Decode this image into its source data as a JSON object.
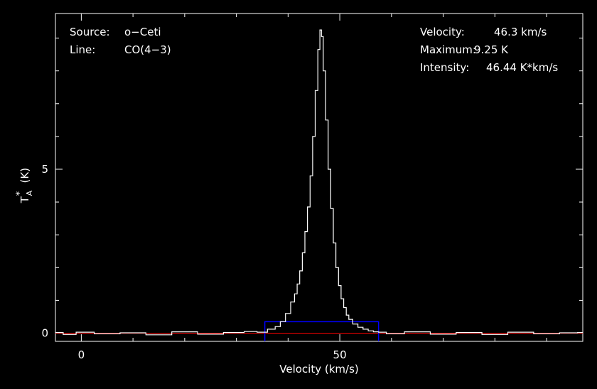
{
  "chart_data": {
    "type": "line",
    "xlabel": "Velocity (km/s)",
    "ylabel": "T",
    "ylabel_sub": "A",
    "ylabel_sup": "*",
    "ylabel_unit": "(K)",
    "xlim": [
      -5,
      97
    ],
    "ylim": [
      -0.25,
      9.75
    ],
    "x_ticks": [
      0,
      50
    ],
    "y_ticks": [
      0,
      5
    ],
    "info_left": [
      {
        "label": "Source:",
        "value": "o−Ceti"
      },
      {
        "label": "Line:",
        "value": "CO(4−3)"
      }
    ],
    "info_right": [
      {
        "label": "Velocity:",
        "value": "46.3 km/s"
      },
      {
        "label": "Maximum:",
        "value": "9.25 K"
      },
      {
        "label": "Intensity:",
        "value": "46.44 K*km/s"
      }
    ],
    "integration_window": {
      "x0": 35.5,
      "x1": 57.5,
      "y": 0.35
    },
    "baseline": 0,
    "series": [
      {
        "color": "#ffffff",
        "x": [
          -5,
          -2,
          0,
          5,
          10,
          15,
          20,
          25,
          30,
          33,
          35,
          37,
          38,
          39,
          40,
          41,
          41.5,
          42,
          42.5,
          43,
          43.5,
          44,
          44.5,
          45,
          45.5,
          46,
          46.3,
          46.6,
          47,
          47.5,
          48,
          48.5,
          49,
          49.5,
          50,
          50.5,
          51,
          51.5,
          52,
          53,
          54,
          55,
          56,
          57,
          58,
          60,
          65,
          70,
          75,
          80,
          85,
          90,
          95,
          97
        ],
        "y": [
          0.02,
          -0.04,
          0.03,
          -0.02,
          0.01,
          -0.05,
          0.04,
          -0.03,
          0.02,
          0.05,
          0.03,
          0.12,
          0.2,
          0.35,
          0.6,
          0.95,
          1.2,
          1.5,
          1.9,
          2.45,
          3.1,
          3.85,
          4.8,
          6.0,
          7.4,
          8.65,
          9.25,
          9.05,
          8.0,
          6.5,
          5.0,
          3.8,
          2.75,
          2.0,
          1.45,
          1.05,
          0.78,
          0.55,
          0.42,
          0.28,
          0.18,
          0.12,
          0.07,
          0.04,
          0.03,
          -0.02,
          0.04,
          -0.03,
          0.02,
          -0.04,
          0.03,
          -0.02,
          0.01,
          0.02
        ]
      }
    ],
    "colors": {
      "axes": "#ffffff",
      "window": "#0000ff",
      "baseline": "#ff0000",
      "background": "#000000"
    }
  }
}
